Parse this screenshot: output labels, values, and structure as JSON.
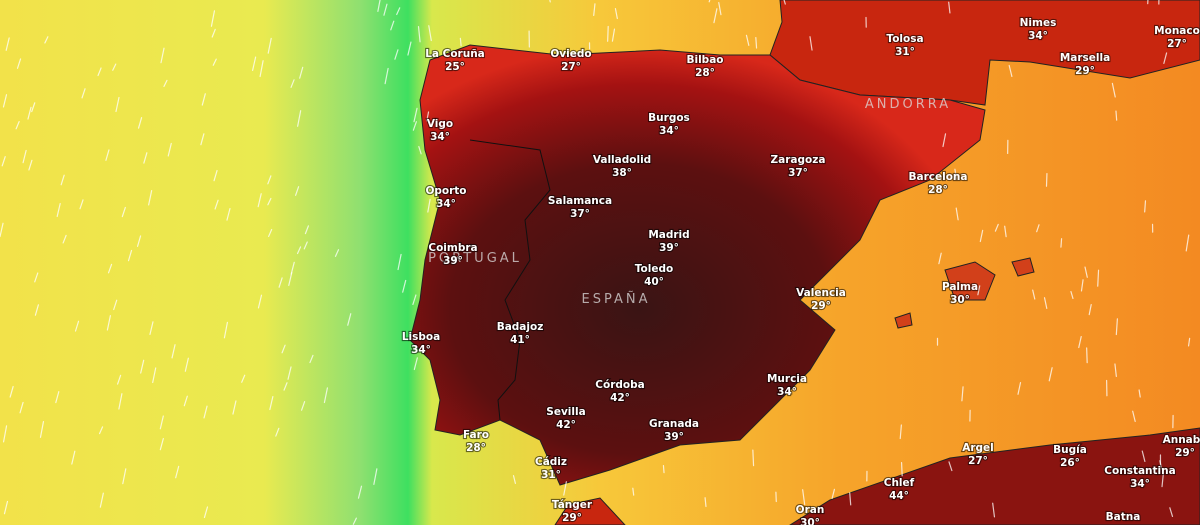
{
  "regions": [
    {
      "label": "PORTUGAL"
    },
    {
      "label": "ESPAÑA"
    },
    {
      "label": "ANDORRA"
    }
  ],
  "cities": [
    {
      "name": "La Coruña",
      "temp": "25°"
    },
    {
      "name": "Oviedo",
      "temp": "27°"
    },
    {
      "name": "Bilbao",
      "temp": "28°"
    },
    {
      "name": "Tolosa",
      "temp": "31°"
    },
    {
      "name": "Nimes",
      "temp": "34°"
    },
    {
      "name": "Marsella",
      "temp": "29°"
    },
    {
      "name": "Monaco",
      "temp": "27°"
    },
    {
      "name": "Vigo",
      "temp": "34°"
    },
    {
      "name": "Burgos",
      "temp": "34°"
    },
    {
      "name": "Valladolid",
      "temp": "38°"
    },
    {
      "name": "Zaragoza",
      "temp": "37°"
    },
    {
      "name": "Barcelona",
      "temp": "28°"
    },
    {
      "name": "Oporto",
      "temp": "34°"
    },
    {
      "name": "Salamanca",
      "temp": "37°"
    },
    {
      "name": "Madrid",
      "temp": "39°"
    },
    {
      "name": "Coimbra",
      "temp": "39°"
    },
    {
      "name": "Toledo",
      "temp": "40°"
    },
    {
      "name": "Valencia",
      "temp": "29°"
    },
    {
      "name": "Palma",
      "temp": "30°"
    },
    {
      "name": "Lisboa",
      "temp": "34°"
    },
    {
      "name": "Badajoz",
      "temp": "41°"
    },
    {
      "name": "Murcia",
      "temp": "34°"
    },
    {
      "name": "Córdoba",
      "temp": "42°"
    },
    {
      "name": "Sevilla",
      "temp": "42°"
    },
    {
      "name": "Granada",
      "temp": "39°"
    },
    {
      "name": "Faro",
      "temp": "28°"
    },
    {
      "name": "Argel",
      "temp": "27°"
    },
    {
      "name": "Bugía",
      "temp": "26°"
    },
    {
      "name": "Annaba",
      "temp": "29°"
    },
    {
      "name": "Constantina",
      "temp": "34°"
    },
    {
      "name": "Cádiz",
      "temp": "31°"
    },
    {
      "name": "Chlef",
      "temp": "44°"
    },
    {
      "name": "Tánger",
      "temp": "29°"
    },
    {
      "name": "Oran",
      "temp": "30°"
    },
    {
      "name": "Batna"
    }
  ]
}
